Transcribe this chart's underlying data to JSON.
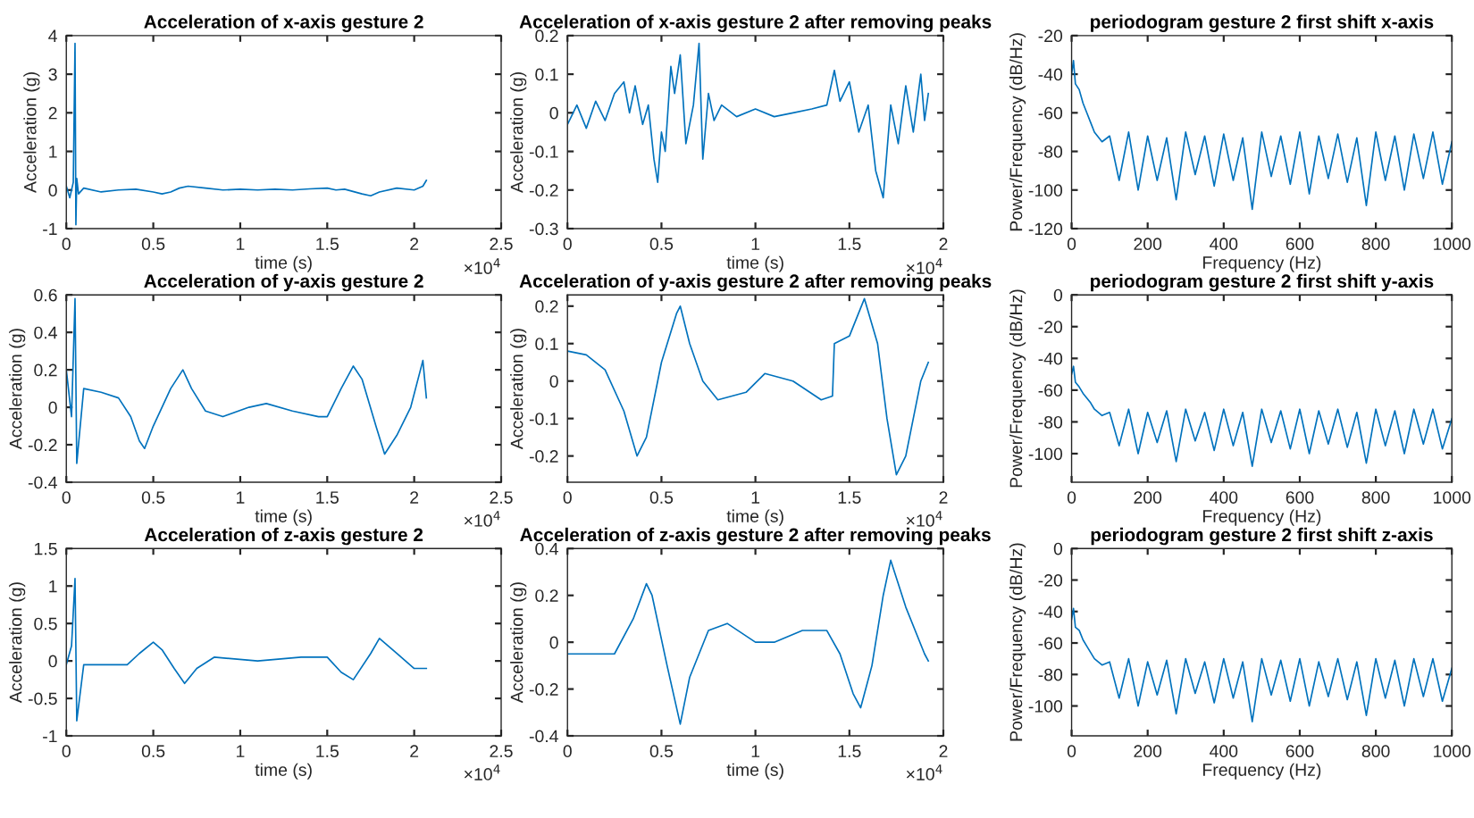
{
  "chart_data": [
    {
      "type": "line",
      "title": "Acceleration of x-axis gesture 2",
      "xlabel": "time (s)",
      "ylabel": "Acceleration (g)",
      "annotations": [
        "×10$^{4}$"
      ],
      "xlim": [
        0,
        2.5
      ],
      "xticks": [
        0,
        0.5,
        1,
        1.5,
        2,
        2.5
      ],
      "ylim": [
        -1,
        4
      ],
      "yticks": [
        -1,
        0,
        1,
        2,
        3,
        4
      ],
      "grid": false,
      "legend": false,
      "x": [
        0,
        0.02,
        0.04,
        0.05,
        0.055,
        0.06,
        0.07,
        0.1,
        0.2,
        0.3,
        0.4,
        0.5,
        0.55,
        0.6,
        0.65,
        0.7,
        0.8,
        0.9,
        1.0,
        1.1,
        1.2,
        1.3,
        1.4,
        1.5,
        1.55,
        1.6,
        1.7,
        1.75,
        1.8,
        1.9,
        2.0,
        2.05,
        2.07
      ],
      "series": [
        {
          "color": "#0072bd",
          "values": [
            0.1,
            -0.2,
            0.2,
            3.8,
            -0.9,
            0.3,
            -0.1,
            0.05,
            -0.05,
            0.0,
            0.02,
            -0.05,
            -0.1,
            -0.05,
            0.05,
            0.1,
            0.05,
            0.0,
            0.02,
            0.0,
            0.02,
            0.0,
            0.03,
            0.05,
            0.0,
            0.02,
            -0.1,
            -0.15,
            -0.05,
            0.05,
            0.0,
            0.1,
            0.25
          ]
        }
      ]
    },
    {
      "type": "line",
      "title": "Acceleration of x-axis gesture 2 after removing peaks",
      "xlabel": "time (s)",
      "ylabel": "Acceleration (g)",
      "annotations": [
        "×10$^{4}$"
      ],
      "xlim": [
        0,
        2
      ],
      "xticks": [
        0,
        0.5,
        1,
        1.5,
        2
      ],
      "ylim": [
        -0.3,
        0.2
      ],
      "yticks": [
        -0.3,
        -0.2,
        -0.1,
        0,
        0.1,
        0.2
      ],
      "grid": false,
      "legend": false,
      "x": [
        0,
        0.05,
        0.1,
        0.15,
        0.2,
        0.25,
        0.3,
        0.33,
        0.36,
        0.4,
        0.43,
        0.46,
        0.48,
        0.5,
        0.52,
        0.55,
        0.57,
        0.6,
        0.63,
        0.67,
        0.7,
        0.72,
        0.75,
        0.78,
        0.82,
        0.9,
        1.0,
        1.1,
        1.2,
        1.3,
        1.38,
        1.42,
        1.45,
        1.5,
        1.55,
        1.6,
        1.64,
        1.68,
        1.72,
        1.76,
        1.8,
        1.84,
        1.88,
        1.9,
        1.92
      ],
      "series": [
        {
          "color": "#0072bd",
          "values": [
            -0.03,
            0.02,
            -0.04,
            0.03,
            -0.02,
            0.05,
            0.08,
            0.0,
            0.07,
            -0.03,
            0.02,
            -0.12,
            -0.18,
            -0.05,
            -0.1,
            0.12,
            0.05,
            0.15,
            -0.08,
            0.02,
            0.18,
            -0.12,
            0.05,
            -0.02,
            0.02,
            -0.01,
            0.01,
            -0.01,
            0.0,
            0.01,
            0.02,
            0.11,
            0.03,
            0.08,
            -0.05,
            0.02,
            -0.15,
            -0.22,
            0.02,
            -0.08,
            0.07,
            -0.05,
            0.1,
            -0.02,
            0.05
          ]
        }
      ]
    },
    {
      "type": "line",
      "title": "periodogram gesture 2 first shift x-axis",
      "xlabel": "Frequency (Hz)",
      "ylabel": "Power/Frequency (dB/Hz)",
      "xlim": [
        0,
        1000
      ],
      "xticks": [
        0,
        200,
        400,
        600,
        800,
        1000
      ],
      "ylim": [
        -120,
        -20
      ],
      "yticks": [
        -120,
        -100,
        -80,
        -60,
        -40,
        -20
      ],
      "grid": false,
      "legend": false,
      "x": [
        0,
        5,
        10,
        20,
        30,
        40,
        50,
        60,
        80,
        100,
        125,
        150,
        175,
        200,
        225,
        250,
        275,
        300,
        325,
        350,
        375,
        400,
        425,
        450,
        475,
        500,
        525,
        550,
        575,
        600,
        625,
        650,
        675,
        700,
        725,
        750,
        775,
        800,
        825,
        850,
        875,
        900,
        925,
        950,
        975,
        1000
      ],
      "series": [
        {
          "color": "#0072bd",
          "values": [
            -40,
            -33,
            -45,
            -48,
            -55,
            -60,
            -65,
            -70,
            -75,
            -72,
            -95,
            -70,
            -100,
            -72,
            -95,
            -73,
            -105,
            -70,
            -92,
            -72,
            -98,
            -71,
            -95,
            -73,
            -110,
            -70,
            -93,
            -72,
            -97,
            -70,
            -102,
            -72,
            -94,
            -71,
            -96,
            -73,
            -108,
            -70,
            -95,
            -72,
            -100,
            -71,
            -94,
            -70,
            -97,
            -75
          ]
        }
      ]
    },
    {
      "type": "line",
      "title": "Acceleration of y-axis gesture 2",
      "xlabel": "time (s)",
      "ylabel": "Acceleration (g)",
      "annotations": [
        "×10$^{4}$"
      ],
      "xlim": [
        0,
        2.5
      ],
      "xticks": [
        0,
        0.5,
        1,
        1.5,
        2,
        2.5
      ],
      "ylim": [
        -0.4,
        0.6
      ],
      "yticks": [
        -0.4,
        -0.2,
        0,
        0.2,
        0.4,
        0.6
      ],
      "grid": false,
      "legend": false,
      "x": [
        0,
        0.03,
        0.05,
        0.06,
        0.1,
        0.2,
        0.3,
        0.37,
        0.42,
        0.45,
        0.5,
        0.6,
        0.67,
        0.72,
        0.8,
        0.9,
        1.05,
        1.15,
        1.3,
        1.45,
        1.5,
        1.58,
        1.65,
        1.7,
        1.78,
        1.83,
        1.9,
        1.98,
        2.05,
        2.07
      ],
      "series": [
        {
          "color": "#0072bd",
          "values": [
            0.2,
            -0.05,
            0.58,
            -0.3,
            0.1,
            0.08,
            0.05,
            -0.05,
            -0.18,
            -0.22,
            -0.1,
            0.1,
            0.2,
            0.1,
            -0.02,
            -0.05,
            0.0,
            0.02,
            -0.02,
            -0.05,
            -0.05,
            0.1,
            0.22,
            0.15,
            -0.1,
            -0.25,
            -0.15,
            0.0,
            0.25,
            0.05
          ]
        }
      ]
    },
    {
      "type": "line",
      "title": "Acceleration of y-axis gesture 2 after removing peaks",
      "xlabel": "time (s)",
      "ylabel": "Acceleration (g)",
      "annotations": [
        "×10$^{4}$"
      ],
      "xlim": [
        0,
        2
      ],
      "xticks": [
        0,
        0.5,
        1,
        1.5,
        2
      ],
      "ylim": [
        -0.27,
        0.23
      ],
      "yticks": [
        -0.2,
        -0.1,
        0,
        0.1,
        0.2
      ],
      "grid": false,
      "legend": false,
      "x": [
        0,
        0.1,
        0.2,
        0.3,
        0.37,
        0.42,
        0.5,
        0.58,
        0.6,
        0.65,
        0.72,
        0.8,
        0.95,
        1.05,
        1.2,
        1.35,
        1.41,
        1.42,
        1.5,
        1.58,
        1.65,
        1.7,
        1.75,
        1.8,
        1.88,
        1.92
      ],
      "series": [
        {
          "color": "#0072bd",
          "values": [
            0.08,
            0.07,
            0.03,
            -0.08,
            -0.2,
            -0.15,
            0.05,
            0.18,
            0.2,
            0.1,
            0.0,
            -0.05,
            -0.03,
            0.02,
            0.0,
            -0.05,
            -0.04,
            0.1,
            0.12,
            0.22,
            0.1,
            -0.1,
            -0.25,
            -0.2,
            0.0,
            0.05
          ]
        }
      ]
    },
    {
      "type": "line",
      "title": "periodogram gesture 2 first shift y-axis",
      "xlabel": "Frequency (Hz)",
      "ylabel": "Power/Frequency (dB/Hz)",
      "xlim": [
        0,
        1000
      ],
      "xticks": [
        0,
        200,
        400,
        600,
        800,
        1000
      ],
      "ylim": [
        -118,
        0
      ],
      "yticks": [
        -100,
        -80,
        -60,
        -40,
        -20,
        0
      ],
      "grid": false,
      "legend": false,
      "x": [
        0,
        5,
        10,
        20,
        30,
        40,
        50,
        60,
        80,
        100,
        125,
        150,
        175,
        200,
        225,
        250,
        275,
        300,
        325,
        350,
        375,
        400,
        425,
        450,
        475,
        500,
        525,
        550,
        575,
        600,
        625,
        650,
        675,
        700,
        725,
        750,
        775,
        800,
        825,
        850,
        875,
        900,
        925,
        950,
        975,
        1000
      ],
      "series": [
        {
          "color": "#0072bd",
          "values": [
            -50,
            -45,
            -55,
            -58,
            -62,
            -65,
            -68,
            -72,
            -76,
            -74,
            -95,
            -72,
            -100,
            -74,
            -93,
            -73,
            -105,
            -72,
            -92,
            -74,
            -98,
            -72,
            -95,
            -74,
            -108,
            -72,
            -93,
            -73,
            -97,
            -72,
            -100,
            -73,
            -94,
            -72,
            -96,
            -74,
            -106,
            -72,
            -95,
            -73,
            -100,
            -72,
            -94,
            -72,
            -97,
            -78
          ]
        }
      ]
    },
    {
      "type": "line",
      "title": "Acceleration of z-axis gesture 2",
      "xlabel": "time (s)",
      "ylabel": "Acceleration (g)",
      "annotations": [
        "×10$^{4}$"
      ],
      "xlim": [
        0,
        2.5
      ],
      "xticks": [
        0,
        0.5,
        1,
        1.5,
        2,
        2.5
      ],
      "ylim": [
        -1,
        1.5
      ],
      "yticks": [
        -1,
        -0.5,
        0,
        0.5,
        1,
        1.5
      ],
      "grid": false,
      "legend": false,
      "x": [
        0,
        0.03,
        0.05,
        0.06,
        0.1,
        0.2,
        0.35,
        0.42,
        0.5,
        0.55,
        0.62,
        0.68,
        0.75,
        0.85,
        1.1,
        1.35,
        1.5,
        1.58,
        1.65,
        1.75,
        1.8,
        1.9,
        2.0,
        2.07
      ],
      "series": [
        {
          "color": "#0072bd",
          "values": [
            -0.05,
            0.2,
            1.1,
            -0.8,
            -0.05,
            -0.05,
            -0.05,
            0.1,
            0.25,
            0.15,
            -0.1,
            -0.3,
            -0.1,
            0.05,
            0.0,
            0.05,
            0.05,
            -0.15,
            -0.25,
            0.1,
            0.3,
            0.1,
            -0.1,
            -0.1
          ]
        }
      ]
    },
    {
      "type": "line",
      "title": "Acceleration of z-axis gesture 2 after removing peaks",
      "xlabel": "time (s)",
      "ylabel": "Acceleration (g)",
      "annotations": [
        "×10$^{4}$"
      ],
      "xlim": [
        0,
        2
      ],
      "xticks": [
        0,
        0.5,
        1,
        1.5,
        2
      ],
      "ylim": [
        -0.4,
        0.4
      ],
      "yticks": [
        -0.4,
        -0.2,
        0,
        0.2,
        0.4
      ],
      "grid": false,
      "legend": false,
      "x": [
        0,
        0.1,
        0.25,
        0.35,
        0.42,
        0.45,
        0.53,
        0.6,
        0.65,
        0.75,
        0.85,
        1.0,
        1.1,
        1.25,
        1.38,
        1.45,
        1.52,
        1.56,
        1.62,
        1.68,
        1.72,
        1.8,
        1.9,
        1.92
      ],
      "series": [
        {
          "color": "#0072bd",
          "values": [
            -0.05,
            -0.05,
            -0.05,
            0.1,
            0.25,
            0.2,
            -0.1,
            -0.35,
            -0.15,
            0.05,
            0.08,
            0.0,
            0.0,
            0.05,
            0.05,
            -0.05,
            -0.22,
            -0.28,
            -0.1,
            0.2,
            0.35,
            0.15,
            -0.05,
            -0.08
          ]
        }
      ]
    },
    {
      "type": "line",
      "title": "periodogram gesture 2 first shift z-axis",
      "xlabel": "Frequency (Hz)",
      "ylabel": "Power/Frequency (dB/Hz)",
      "xlim": [
        0,
        1000
      ],
      "xticks": [
        0,
        200,
        400,
        600,
        800,
        1000
      ],
      "ylim": [
        -119,
        0
      ],
      "yticks": [
        -100,
        -80,
        -60,
        -40,
        -20,
        0
      ],
      "grid": false,
      "legend": false,
      "x": [
        0,
        5,
        10,
        20,
        30,
        40,
        50,
        60,
        80,
        100,
        125,
        150,
        175,
        200,
        225,
        250,
        275,
        300,
        325,
        350,
        375,
        400,
        425,
        450,
        475,
        500,
        525,
        550,
        575,
        600,
        625,
        650,
        675,
        700,
        725,
        750,
        775,
        800,
        825,
        850,
        875,
        900,
        925,
        950,
        975,
        1000
      ],
      "series": [
        {
          "color": "#0072bd",
          "values": [
            -45,
            -38,
            -50,
            -52,
            -58,
            -62,
            -66,
            -70,
            -74,
            -72,
            -95,
            -70,
            -100,
            -72,
            -93,
            -71,
            -105,
            -70,
            -92,
            -72,
            -98,
            -70,
            -95,
            -72,
            -110,
            -70,
            -93,
            -71,
            -97,
            -70,
            -100,
            -72,
            -94,
            -70,
            -96,
            -72,
            -106,
            -70,
            -95,
            -71,
            -100,
            -70,
            -94,
            -70,
            -97,
            -76
          ]
        }
      ]
    }
  ]
}
